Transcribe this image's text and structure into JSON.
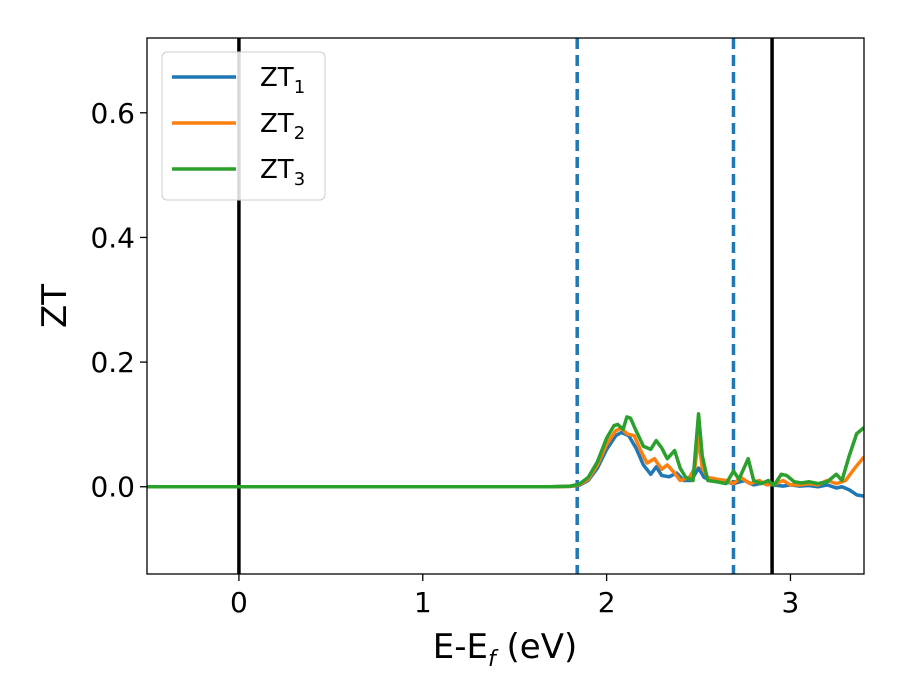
{
  "chart_data": {
    "type": "line",
    "title": "",
    "xlabel": {
      "base": "E-E",
      "sub": "f",
      "unit": " (eV)"
    },
    "ylabel": "ZT",
    "xlim": [
      -0.5,
      3.4
    ],
    "ylim": [
      -0.14,
      0.72
    ],
    "x_ticks": [
      0,
      1,
      2,
      3
    ],
    "x_tick_labels": [
      "0",
      "1",
      "2",
      "3"
    ],
    "y_ticks": [
      0.0,
      0.2,
      0.4,
      0.6
    ],
    "y_tick_labels": [
      "0.0",
      "0.2",
      "0.4",
      "0.6"
    ],
    "grid": false,
    "legend_position": "top-left",
    "vlines_solid": [
      0.0,
      2.9
    ],
    "vlines_dashed": [
      1.84,
      2.69
    ],
    "series": [
      {
        "name": "ZT",
        "sub": "1",
        "color": "#1f77b4",
        "points": [
          [
            -0.5,
            0
          ],
          [
            1.7,
            0
          ],
          [
            1.8,
            0.0005
          ],
          [
            1.85,
            0.002
          ],
          [
            1.9,
            0.01
          ],
          [
            1.95,
            0.03
          ],
          [
            2.0,
            0.06
          ],
          [
            2.05,
            0.082
          ],
          [
            2.08,
            0.087
          ],
          [
            2.12,
            0.082
          ],
          [
            2.16,
            0.062
          ],
          [
            2.2,
            0.035
          ],
          [
            2.24,
            0.02
          ],
          [
            2.27,
            0.032
          ],
          [
            2.3,
            0.018
          ],
          [
            2.34,
            0.016
          ],
          [
            2.38,
            0.022
          ],
          [
            2.42,
            0.01
          ],
          [
            2.46,
            0.01
          ],
          [
            2.5,
            0.03
          ],
          [
            2.53,
            0.015
          ],
          [
            2.57,
            0.01
          ],
          [
            2.62,
            0.01
          ],
          [
            2.69,
            0.005
          ],
          [
            2.75,
            0.01
          ],
          [
            2.8,
            0.003
          ],
          [
            2.85,
            0.006
          ],
          [
            2.9,
            0.003
          ],
          [
            2.96,
            0.001
          ],
          [
            3.0,
            0.003
          ],
          [
            3.05,
            0.001
          ],
          [
            3.1,
            0.002
          ],
          [
            3.15,
            0.0
          ],
          [
            3.2,
            0.003
          ],
          [
            3.25,
            -0.002
          ],
          [
            3.28,
            0.0
          ],
          [
            3.32,
            -0.005
          ],
          [
            3.36,
            -0.013
          ],
          [
            3.4,
            -0.015
          ]
        ]
      },
      {
        "name": "ZT",
        "sub": "2",
        "color": "#ff7f0e",
        "points": [
          [
            -0.5,
            0
          ],
          [
            1.7,
            0
          ],
          [
            1.8,
            0.0005
          ],
          [
            1.85,
            0.003
          ],
          [
            1.9,
            0.012
          ],
          [
            1.95,
            0.035
          ],
          [
            2.0,
            0.068
          ],
          [
            2.05,
            0.09
          ],
          [
            2.08,
            0.094
          ],
          [
            2.11,
            0.085
          ],
          [
            2.15,
            0.082
          ],
          [
            2.19,
            0.055
          ],
          [
            2.22,
            0.038
          ],
          [
            2.26,
            0.045
          ],
          [
            2.3,
            0.028
          ],
          [
            2.33,
            0.035
          ],
          [
            2.37,
            0.022
          ],
          [
            2.4,
            0.01
          ],
          [
            2.45,
            0.015
          ],
          [
            2.48,
            0.03
          ],
          [
            2.5,
            0.078
          ],
          [
            2.52,
            0.03
          ],
          [
            2.55,
            0.015
          ],
          [
            2.6,
            0.012
          ],
          [
            2.65,
            0.01
          ],
          [
            2.69,
            0.005
          ],
          [
            2.73,
            0.015
          ],
          [
            2.78,
            0.005
          ],
          [
            2.83,
            0.01
          ],
          [
            2.87,
            0.003
          ],
          [
            2.92,
            0.005
          ],
          [
            2.96,
            0.01
          ],
          [
            3.0,
            0.003
          ],
          [
            3.05,
            0.003
          ],
          [
            3.1,
            0.005
          ],
          [
            3.15,
            0.003
          ],
          [
            3.2,
            0.01
          ],
          [
            3.25,
            0.005
          ],
          [
            3.3,
            0.01
          ],
          [
            3.35,
            0.03
          ],
          [
            3.4,
            0.048
          ]
        ]
      },
      {
        "name": "ZT",
        "sub": "3",
        "color": "#2ca02c",
        "points": [
          [
            -0.5,
            0
          ],
          [
            1.7,
            0
          ],
          [
            1.8,
            0.001
          ],
          [
            1.85,
            0.004
          ],
          [
            1.9,
            0.015
          ],
          [
            1.95,
            0.04
          ],
          [
            2.0,
            0.078
          ],
          [
            2.04,
            0.098
          ],
          [
            2.06,
            0.1
          ],
          [
            2.09,
            0.092
          ],
          [
            2.11,
            0.112
          ],
          [
            2.13,
            0.11
          ],
          [
            2.16,
            0.09
          ],
          [
            2.2,
            0.065
          ],
          [
            2.24,
            0.06
          ],
          [
            2.27,
            0.074
          ],
          [
            2.3,
            0.062
          ],
          [
            2.33,
            0.045
          ],
          [
            2.37,
            0.058
          ],
          [
            2.4,
            0.03
          ],
          [
            2.43,
            0.015
          ],
          [
            2.47,
            0.01
          ],
          [
            2.5,
            0.117
          ],
          [
            2.52,
            0.05
          ],
          [
            2.55,
            0.01
          ],
          [
            2.6,
            0.008
          ],
          [
            2.65,
            0.005
          ],
          [
            2.69,
            0.025
          ],
          [
            2.72,
            0.012
          ],
          [
            2.77,
            0.045
          ],
          [
            2.8,
            0.01
          ],
          [
            2.84,
            0.005
          ],
          [
            2.88,
            0.01
          ],
          [
            2.91,
            0.002
          ],
          [
            2.95,
            0.02
          ],
          [
            2.98,
            0.018
          ],
          [
            3.02,
            0.008
          ],
          [
            3.06,
            0.006
          ],
          [
            3.1,
            0.008
          ],
          [
            3.15,
            0.005
          ],
          [
            3.2,
            0.008
          ],
          [
            3.25,
            0.02
          ],
          [
            3.28,
            0.01
          ],
          [
            3.32,
            0.05
          ],
          [
            3.36,
            0.085
          ],
          [
            3.4,
            0.095
          ]
        ]
      }
    ]
  }
}
